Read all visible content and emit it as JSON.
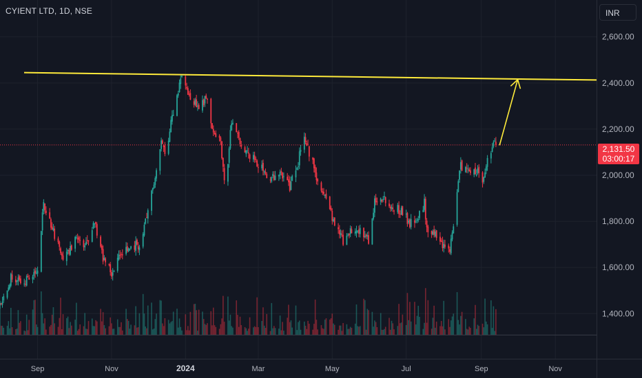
{
  "header": {
    "title": "CYIENT LTD, 1D, NSE"
  },
  "currency_button": {
    "label": "INR"
  },
  "last_price": {
    "price": "2,131.50",
    "countdown": "03:00:17"
  },
  "colors": {
    "background": "#131722",
    "up": "#26a69a",
    "down": "#f23645",
    "annotation": "#ffeb3b",
    "axis_text": "#b2b5be"
  },
  "chart_data": {
    "type": "candlestick",
    "symbol": "CYIENT LTD",
    "interval": "1D",
    "exchange": "NSE",
    "currency": "INR",
    "y_axis": {
      "ticks": [
        1400,
        1600,
        1800,
        2000,
        2200,
        2400,
        2600
      ],
      "tick_labels": [
        "1,400.00",
        "1,600.00",
        "1,800.00",
        "2,000.00",
        "2,200.00",
        "2,400.00",
        "2,600.00"
      ],
      "range": [
        1210,
        2760
      ]
    },
    "x_axis": {
      "labels": [
        "Sep",
        "Nov",
        "2024",
        "Mar",
        "May",
        "Jul",
        "Sep",
        "Nov"
      ],
      "range": [
        "2023-08-01",
        "2024-12-05"
      ]
    },
    "price_path": [
      [
        "2023-08-01",
        1440
      ],
      [
        "2023-08-10",
        1560
      ],
      [
        "2023-08-18",
        1530
      ],
      [
        "2023-08-25",
        1545
      ],
      [
        "2023-09-01",
        1580
      ],
      [
        "2023-09-06",
        1880
      ],
      [
        "2023-09-14",
        1760
      ],
      [
        "2023-09-22",
        1640
      ],
      [
        "2023-10-02",
        1720
      ],
      [
        "2023-10-10",
        1690
      ],
      [
        "2023-10-18",
        1790
      ],
      [
        "2023-10-26",
        1620
      ],
      [
        "2023-11-02",
        1570
      ],
      [
        "2023-11-09",
        1670
      ],
      [
        "2023-11-17",
        1690
      ],
      [
        "2023-11-24",
        1700
      ],
      [
        "2023-12-01",
        1840
      ],
      [
        "2023-12-07",
        2000
      ],
      [
        "2023-12-12",
        2150
      ],
      [
        "2023-12-16",
        2080
      ],
      [
        "2023-12-20",
        2230
      ],
      [
        "2023-12-26",
        2370
      ],
      [
        "2023-12-29",
        2420
      ],
      [
        "2024-01-05",
        2340
      ],
      [
        "2024-01-12",
        2300
      ],
      [
        "2024-01-19",
        2330
      ],
      [
        "2024-01-24",
        2180
      ],
      [
        "2024-01-30",
        2150
      ],
      [
        "2024-02-03",
        1930
      ],
      [
        "2024-02-08",
        2240
      ],
      [
        "2024-02-15",
        2140
      ],
      [
        "2024-02-22",
        2080
      ],
      [
        "2024-02-29",
        2060
      ],
      [
        "2024-03-07",
        2010
      ],
      [
        "2024-03-14",
        1990
      ],
      [
        "2024-03-20",
        2010
      ],
      [
        "2024-03-27",
        1950
      ],
      [
        "2024-04-03",
        2060
      ],
      [
        "2024-04-08",
        2170
      ],
      [
        "2024-04-16",
        2030
      ],
      [
        "2024-04-24",
        1910
      ],
      [
        "2024-05-02",
        1810
      ],
      [
        "2024-05-10",
        1710
      ],
      [
        "2024-05-17",
        1760
      ],
      [
        "2024-05-24",
        1770
      ],
      [
        "2024-05-31",
        1710
      ],
      [
        "2024-06-05",
        1880
      ],
      [
        "2024-06-12",
        1900
      ],
      [
        "2024-06-20",
        1860
      ],
      [
        "2024-06-27",
        1850
      ],
      [
        "2024-07-04",
        1790
      ],
      [
        "2024-07-10",
        1820
      ],
      [
        "2024-07-16",
        1880
      ],
      [
        "2024-07-18",
        1760
      ],
      [
        "2024-07-25",
        1740
      ],
      [
        "2024-08-01",
        1680
      ],
      [
        "2024-08-06",
        1660
      ],
      [
        "2024-08-09",
        1790
      ],
      [
        "2024-08-14",
        2040
      ],
      [
        "2024-08-20",
        2010
      ],
      [
        "2024-08-27",
        2020
      ],
      [
        "2024-09-02",
        1990
      ],
      [
        "2024-09-06",
        2060
      ],
      [
        "2024-09-10",
        2130
      ],
      [
        "2024-09-13",
        2131.5
      ]
    ],
    "last_price": 2131.5,
    "resistance_line": {
      "from": [
        "2023-08-01",
        2445
      ],
      "to": [
        "2024-12-05",
        2413
      ]
    },
    "annotation_arrow": {
      "from": [
        "2024-09-16",
        2130
      ],
      "to": [
        "2024-10-01",
        2415
      ]
    },
    "volume": "bars at bottom, colored by candle direction, unlabeled"
  }
}
